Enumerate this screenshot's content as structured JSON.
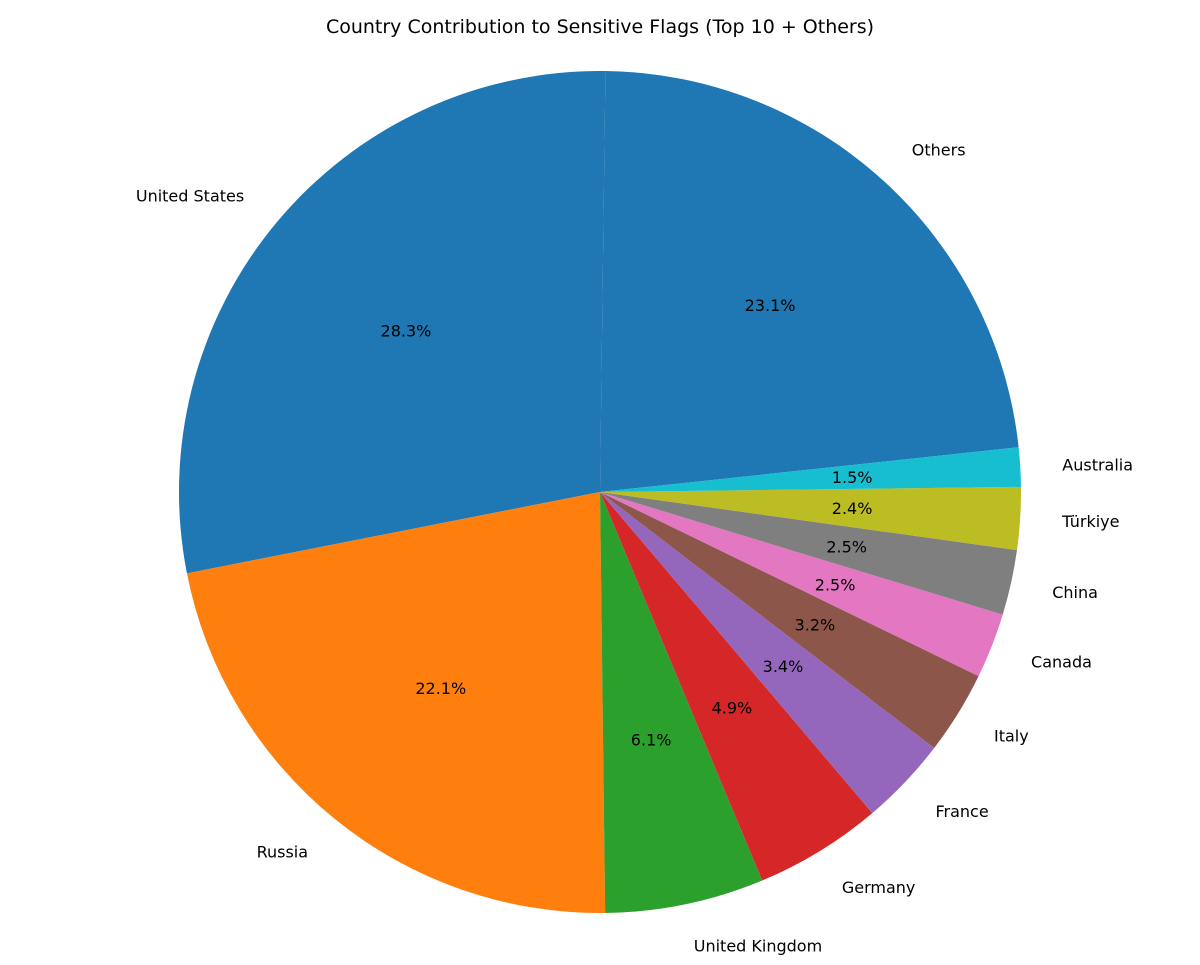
{
  "chart_data": {
    "type": "pie",
    "title": "Country Contribution to Sensitive Flags (Top 10 + Others)",
    "slices": [
      {
        "label": "Others",
        "pct_label": "23.1%",
        "value": 23.1,
        "color": "#1f77b4"
      },
      {
        "label": "United States",
        "pct_label": "28.3%",
        "value": 28.3,
        "color": "#1f77b4"
      },
      {
        "label": "Russia",
        "pct_label": "22.1%",
        "value": 22.1,
        "color": "#ff7f0e"
      },
      {
        "label": "United Kingdom",
        "pct_label": "6.1%",
        "value": 6.1,
        "color": "#2ca02c"
      },
      {
        "label": "Germany",
        "pct_label": "4.9%",
        "value": 4.9,
        "color": "#d62728"
      },
      {
        "label": "France",
        "pct_label": "3.4%",
        "value": 3.4,
        "color": "#9467bd"
      },
      {
        "label": "Italy",
        "pct_label": "3.2%",
        "value": 3.2,
        "color": "#8c564b"
      },
      {
        "label": "Canada",
        "pct_label": "2.5%",
        "value": 2.5,
        "color": "#e377c2"
      },
      {
        "label": "China",
        "pct_label": "2.5%",
        "value": 2.5,
        "color": "#7f7f7f"
      },
      {
        "label": "Türkiye",
        "pct_label": "2.4%",
        "value": 2.4,
        "color": "#bcbd22"
      },
      {
        "label": "Australia",
        "pct_label": "1.5%",
        "value": 1.5,
        "color": "#17becf"
      }
    ],
    "legend": "none"
  }
}
